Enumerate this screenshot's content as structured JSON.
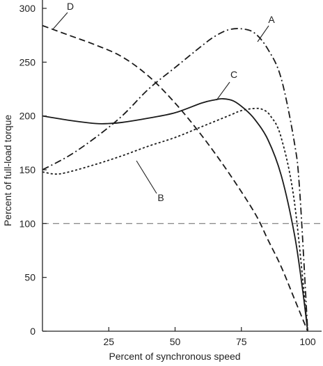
{
  "chart_data": {
    "type": "line",
    "xlabel": "Percent of synchronous speed",
    "ylabel": "Percent of full-load torque",
    "xlim": [
      0,
      100
    ],
    "ylim": [
      0,
      300
    ],
    "x_ticks": [
      25,
      50,
      75,
      100
    ],
    "y_ticks": [
      0,
      50,
      100,
      150,
      200,
      250,
      300
    ],
    "reference_line": {
      "y": 100,
      "style": "dashed"
    },
    "series": [
      {
        "name": "A",
        "style": "dash-dot",
        "x": [
          0,
          10,
          20,
          30,
          40,
          50,
          60,
          65,
          70,
          75,
          80,
          85,
          90,
          95,
          97,
          100
        ],
        "y": [
          150,
          163,
          180,
          200,
          225,
          245,
          265,
          274,
          280,
          281,
          277,
          262,
          235,
          175,
          130,
          0
        ]
      },
      {
        "name": "B",
        "style": "dotted",
        "x": [
          0,
          5,
          10,
          20,
          30,
          40,
          50,
          60,
          70,
          75,
          80,
          83,
          86,
          90,
          95,
          100
        ],
        "y": [
          148,
          146,
          148,
          155,
          163,
          172,
          180,
          190,
          200,
          205,
          207,
          206,
          200,
          180,
          120,
          0
        ]
      },
      {
        "name": "C",
        "style": "solid",
        "x": [
          0,
          10,
          20,
          25,
          30,
          40,
          50,
          60,
          65,
          68,
          72,
          76,
          80,
          85,
          90,
          95,
          98,
          100
        ],
        "y": [
          200,
          196,
          193,
          193,
          194,
          198,
          203,
          212,
          215,
          216,
          214,
          207,
          197,
          178,
          145,
          90,
          40,
          0
        ]
      },
      {
        "name": "D",
        "style": "dashed",
        "x": [
          0,
          10,
          20,
          30,
          40,
          50,
          60,
          70,
          80,
          85,
          90,
          95,
          100
        ],
        "y": [
          284,
          275,
          266,
          255,
          237,
          212,
          182,
          148,
          110,
          85,
          60,
          30,
          0
        ]
      }
    ],
    "labels": [
      {
        "text": "A",
        "series": "A"
      },
      {
        "text": "B",
        "series": "B"
      },
      {
        "text": "C",
        "series": "C"
      },
      {
        "text": "D",
        "series": "D"
      }
    ]
  }
}
